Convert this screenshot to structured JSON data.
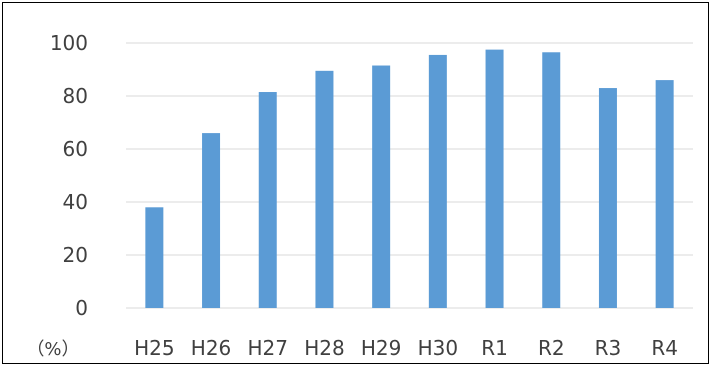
{
  "chart_data": {
    "type": "bar",
    "categories": [
      "H25",
      "H26",
      "H27",
      "H28",
      "H29",
      "H30",
      "R1",
      "R2",
      "R3",
      "R4"
    ],
    "values": [
      38,
      66,
      81.5,
      89.5,
      91.5,
      95.5,
      97.5,
      96.5,
      83,
      86
    ],
    "ylim": [
      0,
      100
    ],
    "yticks": [
      0,
      20,
      40,
      60,
      80,
      100
    ],
    "unit_label": "（%）",
    "title": "",
    "xlabel": "",
    "ylabel": "",
    "grid": true,
    "legend": "none",
    "colors": {
      "bar": "#5b9bd5",
      "grid": "#d9d9d9",
      "text": "#404040"
    }
  }
}
